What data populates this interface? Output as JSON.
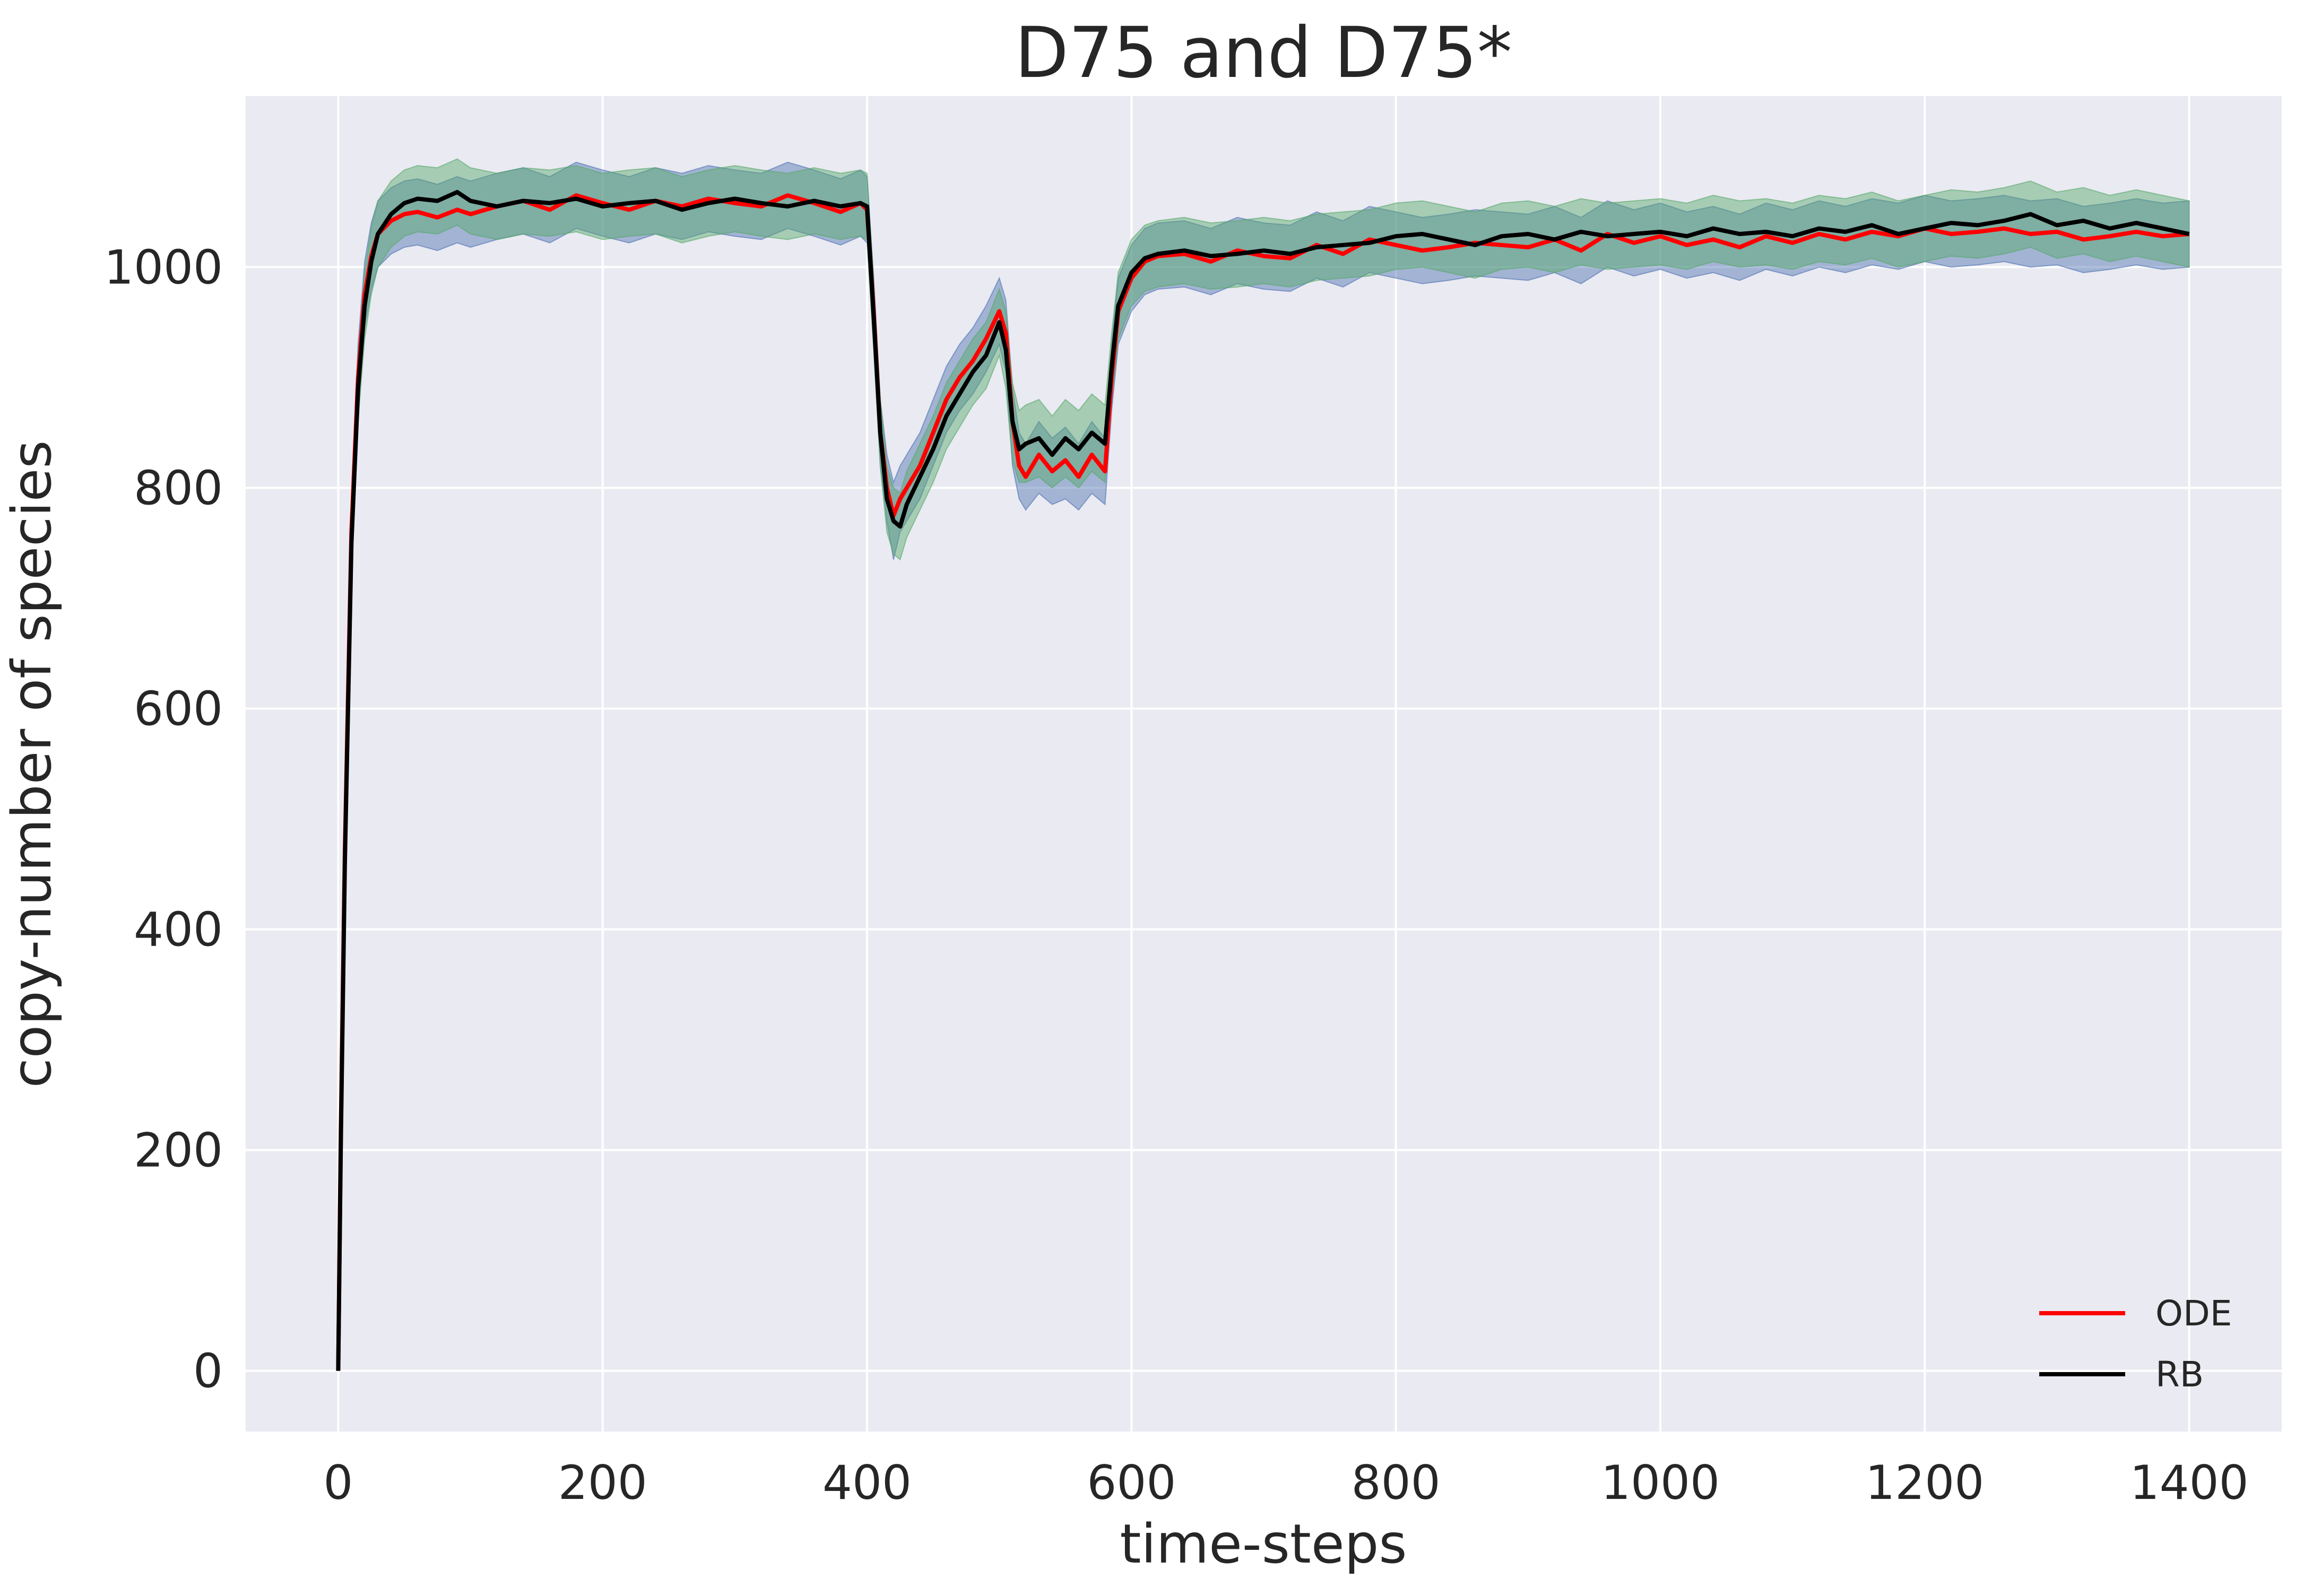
{
  "chart_data": {
    "type": "line",
    "title": "D75 and D75*",
    "xlabel": "time-steps",
    "ylabel": "copy-number of species",
    "xlim": [
      -70,
      1470
    ],
    "ylim": [
      -55,
      1155
    ],
    "xticks": [
      0,
      200,
      400,
      600,
      800,
      1000,
      1200,
      1400
    ],
    "yticks": [
      0,
      200,
      400,
      600,
      800,
      1000
    ],
    "xtick_labels": [
      "0",
      "200",
      "400",
      "600",
      "800",
      "1000",
      "1200",
      "1400"
    ],
    "ytick_labels": [
      "0",
      "200",
      "400",
      "600",
      "800",
      "1000"
    ],
    "grid": true,
    "background": "#eaeaf2",
    "grid_color": "#ffffff",
    "legend": {
      "position": "lower-right",
      "entries": [
        "ODE",
        "RB"
      ]
    },
    "series": [
      {
        "name": "ODE",
        "color": "#ff0000",
        "band_color": "#4c72b0",
        "x": [
          0,
          2,
          5,
          10,
          15,
          20,
          25,
          30,
          40,
          50,
          60,
          75,
          90,
          100,
          120,
          140,
          160,
          180,
          200,
          220,
          240,
          260,
          280,
          300,
          320,
          340,
          360,
          380,
          395,
          400,
          405,
          410,
          415,
          420,
          425,
          430,
          440,
          450,
          460,
          470,
          480,
          490,
          500,
          505,
          510,
          515,
          520,
          530,
          540,
          550,
          560,
          570,
          580,
          585,
          590,
          600,
          610,
          620,
          640,
          660,
          680,
          700,
          720,
          740,
          760,
          780,
          800,
          820,
          840,
          860,
          880,
          900,
          920,
          940,
          960,
          980,
          1000,
          1020,
          1040,
          1060,
          1080,
          1100,
          1120,
          1140,
          1160,
          1180,
          1200,
          1220,
          1240,
          1260,
          1280,
          1300,
          1320,
          1340,
          1360,
          1380,
          1400
        ],
        "y": [
          0,
          220,
          470,
          760,
          900,
          975,
          1010,
          1030,
          1042,
          1048,
          1050,
          1045,
          1052,
          1048,
          1055,
          1060,
          1052,
          1065,
          1058,
          1052,
          1060,
          1055,
          1062,
          1058,
          1055,
          1065,
          1058,
          1050,
          1058,
          1052,
          960,
          850,
          800,
          775,
          790,
          800,
          820,
          850,
          880,
          900,
          915,
          935,
          960,
          940,
          860,
          820,
          810,
          830,
          815,
          825,
          810,
          830,
          815,
          900,
          960,
          990,
          1005,
          1010,
          1012,
          1005,
          1015,
          1010,
          1008,
          1020,
          1012,
          1025,
          1020,
          1015,
          1018,
          1022,
          1020,
          1018,
          1025,
          1015,
          1030,
          1022,
          1028,
          1020,
          1025,
          1018,
          1028,
          1022,
          1030,
          1025,
          1032,
          1028,
          1035,
          1030,
          1032,
          1035,
          1030,
          1032,
          1025,
          1028,
          1032,
          1028,
          1030
        ],
        "band_lower": [
          0,
          200,
          440,
          730,
          870,
          945,
          980,
          1000,
          1012,
          1018,
          1020,
          1015,
          1022,
          1018,
          1025,
          1030,
          1022,
          1035,
          1028,
          1022,
          1030,
          1025,
          1032,
          1028,
          1025,
          1035,
          1028,
          1020,
          1028,
          1022,
          930,
          820,
          770,
          735,
          760,
          770,
          790,
          820,
          850,
          870,
          885,
          905,
          930,
          905,
          820,
          790,
          780,
          795,
          785,
          790,
          780,
          795,
          785,
          870,
          930,
          960,
          975,
          980,
          982,
          975,
          985,
          980,
          978,
          990,
          982,
          995,
          990,
          985,
          988,
          992,
          990,
          988,
          995,
          985,
          1000,
          992,
          998,
          990,
          995,
          988,
          998,
          992,
          1000,
          995,
          1002,
          998,
          1005,
          1000,
          1002,
          1005,
          1000,
          1002,
          995,
          998,
          1002,
          998,
          1000
        ],
        "band_upper": [
          0,
          240,
          500,
          790,
          930,
          1005,
          1040,
          1060,
          1072,
          1078,
          1080,
          1075,
          1082,
          1078,
          1085,
          1090,
          1082,
          1095,
          1088,
          1082,
          1090,
          1085,
          1092,
          1088,
          1085,
          1095,
          1088,
          1080,
          1088,
          1082,
          990,
          880,
          830,
          805,
          820,
          830,
          850,
          880,
          910,
          930,
          945,
          965,
          990,
          970,
          890,
          850,
          840,
          860,
          845,
          855,
          840,
          860,
          845,
          930,
          990,
          1020,
          1035,
          1040,
          1042,
          1035,
          1045,
          1040,
          1038,
          1050,
          1042,
          1055,
          1050,
          1045,
          1048,
          1052,
          1050,
          1048,
          1055,
          1045,
          1060,
          1052,
          1058,
          1050,
          1055,
          1048,
          1058,
          1052,
          1060,
          1055,
          1062,
          1058,
          1065,
          1060,
          1062,
          1065,
          1060,
          1062,
          1055,
          1058,
          1062,
          1058,
          1060
        ]
      },
      {
        "name": "RB",
        "color": "#000000",
        "band_color": "#55a868",
        "x": [
          0,
          2,
          5,
          10,
          15,
          20,
          25,
          30,
          40,
          50,
          60,
          75,
          90,
          100,
          120,
          140,
          160,
          180,
          200,
          220,
          240,
          260,
          280,
          300,
          320,
          340,
          360,
          380,
          395,
          400,
          405,
          410,
          415,
          420,
          425,
          430,
          440,
          450,
          460,
          470,
          480,
          490,
          500,
          505,
          510,
          515,
          520,
          530,
          540,
          550,
          560,
          570,
          580,
          585,
          590,
          600,
          610,
          620,
          640,
          660,
          680,
          700,
          720,
          740,
          760,
          780,
          800,
          820,
          840,
          860,
          880,
          900,
          920,
          940,
          960,
          980,
          1000,
          1020,
          1040,
          1060,
          1080,
          1100,
          1120,
          1140,
          1160,
          1180,
          1200,
          1220,
          1240,
          1260,
          1280,
          1300,
          1320,
          1340,
          1360,
          1380,
          1400
        ],
        "y": [
          0,
          210,
          460,
          750,
          890,
          965,
          1005,
          1030,
          1048,
          1058,
          1062,
          1060,
          1068,
          1060,
          1055,
          1060,
          1058,
          1062,
          1055,
          1058,
          1060,
          1052,
          1058,
          1062,
          1058,
          1055,
          1060,
          1055,
          1058,
          1055,
          955,
          850,
          790,
          770,
          765,
          785,
          810,
          835,
          865,
          885,
          905,
          920,
          950,
          925,
          860,
          835,
          840,
          845,
          830,
          845,
          835,
          850,
          840,
          910,
          965,
          995,
          1008,
          1012,
          1015,
          1010,
          1012,
          1015,
          1012,
          1018,
          1020,
          1022,
          1028,
          1030,
          1025,
          1020,
          1028,
          1030,
          1025,
          1032,
          1028,
          1030,
          1032,
          1028,
          1035,
          1030,
          1032,
          1028,
          1035,
          1032,
          1038,
          1030,
          1035,
          1040,
          1038,
          1042,
          1048,
          1038,
          1042,
          1035,
          1040,
          1035,
          1030
        ],
        "band_lower": [
          0,
          190,
          430,
          720,
          860,
          935,
          975,
          1000,
          1018,
          1028,
          1032,
          1030,
          1038,
          1030,
          1025,
          1030,
          1028,
          1032,
          1025,
          1028,
          1030,
          1022,
          1028,
          1032,
          1028,
          1025,
          1030,
          1025,
          1028,
          1025,
          925,
          820,
          760,
          740,
          735,
          755,
          780,
          805,
          835,
          855,
          875,
          890,
          920,
          890,
          825,
          805,
          805,
          810,
          800,
          810,
          800,
          815,
          805,
          880,
          935,
          965,
          978,
          982,
          985,
          980,
          982,
          985,
          982,
          988,
          990,
          992,
          998,
          1000,
          995,
          990,
          998,
          1000,
          995,
          1002,
          998,
          1000,
          1002,
          998,
          1005,
          1000,
          1002,
          998,
          1005,
          1002,
          1008,
          1000,
          1005,
          1010,
          1008,
          1012,
          1018,
          1008,
          1012,
          1005,
          1010,
          1005,
          1000
        ],
        "band_upper": [
          0,
          230,
          490,
          780,
          920,
          995,
          1035,
          1060,
          1078,
          1088,
          1092,
          1090,
          1098,
          1090,
          1085,
          1090,
          1088,
          1092,
          1085,
          1088,
          1090,
          1082,
          1088,
          1092,
          1088,
          1085,
          1090,
          1085,
          1088,
          1085,
          985,
          880,
          820,
          800,
          795,
          815,
          840,
          865,
          895,
          915,
          935,
          950,
          980,
          960,
          895,
          870,
          875,
          880,
          865,
          880,
          870,
          885,
          875,
          940,
          995,
          1025,
          1038,
          1042,
          1045,
          1040,
          1042,
          1045,
          1042,
          1048,
          1050,
          1052,
          1058,
          1060,
          1055,
          1050,
          1058,
          1060,
          1055,
          1062,
          1058,
          1060,
          1062,
          1058,
          1065,
          1060,
          1062,
          1058,
          1065,
          1062,
          1068,
          1060,
          1065,
          1070,
          1068,
          1072,
          1078,
          1068,
          1072,
          1065,
          1070,
          1065,
          1060
        ]
      }
    ]
  }
}
